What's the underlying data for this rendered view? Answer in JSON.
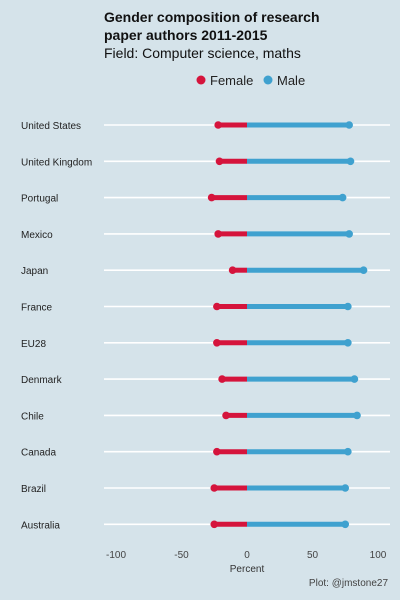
{
  "chart_data": {
    "type": "dumbbell",
    "title": "Gender composition of research paper authors 2011-2015",
    "title_lines": [
      "Gender composition of research",
      "paper authors 2011-2015"
    ],
    "subtitle": "Field: Computer science, maths",
    "xlabel": "Percent",
    "xlim": [
      -105,
      105
    ],
    "xticks": [
      -100,
      -50,
      0,
      50,
      100
    ],
    "xtick_labels": [
      "-100",
      "-50",
      "0",
      "50",
      "100"
    ],
    "legend": [
      {
        "name": "Female",
        "color": "#d5143c"
      },
      {
        "name": "Male",
        "color": "#3fa1cf"
      }
    ],
    "legend_position": "top",
    "grid": "horizontal",
    "categories": [
      "United States",
      "United Kingdom",
      "Portugal",
      "Mexico",
      "Japan",
      "France",
      "EU28",
      "Denmark",
      "Chile",
      "Canada",
      "Brazil",
      "Australia"
    ],
    "series": [
      {
        "name": "Female",
        "values": [
          -22,
          -21,
          -27,
          -22,
          -11,
          -23,
          -23,
          -19,
          -16,
          -23,
          -25,
          -25
        ]
      },
      {
        "name": "Male",
        "values": [
          78,
          79,
          73,
          78,
          89,
          77,
          77,
          82,
          84,
          77,
          75,
          75
        ]
      }
    ],
    "caption": "Plot: @jmstone27"
  }
}
